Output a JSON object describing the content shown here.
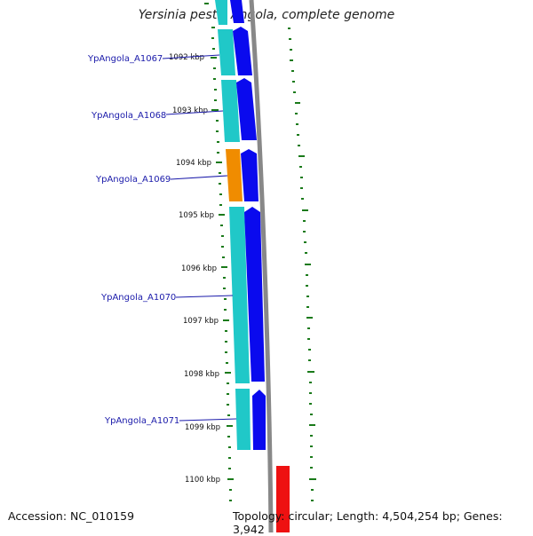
{
  "title": "Yersinia pestis Angola, complete genome",
  "footer": {
    "accession": "Accession: NC_010159",
    "topology": "Topology: circular; Length: 4,504,254 bp; Genes: 3,942"
  },
  "ticks": [
    "1092 kbp",
    "1093 kbp",
    "1094 kbp",
    "1095 kbp",
    "1096 kbp",
    "1097 kbp",
    "1098 kbp",
    "1099 kbp",
    "1100 kbp"
  ],
  "genes": [
    {
      "label": "YpAngola_A1067",
      "color": "#20c8c8"
    },
    {
      "label": "YpAngola_A1068",
      "color": "#20c8c8"
    },
    {
      "label": "YpAngola_A1069",
      "color": "#f08c00"
    },
    {
      "label": "YpAngola_A1070",
      "color": "#20c8c8"
    },
    {
      "label": "YpAngola_A1071",
      "color": "#20c8c8"
    }
  ],
  "colors": {
    "gene_label": "#1a1aaa",
    "cds_arrow": "#0a0aee",
    "backbone": "#888888",
    "gc_marks": "#1a7a1a",
    "feature_red": "#ee1111"
  }
}
